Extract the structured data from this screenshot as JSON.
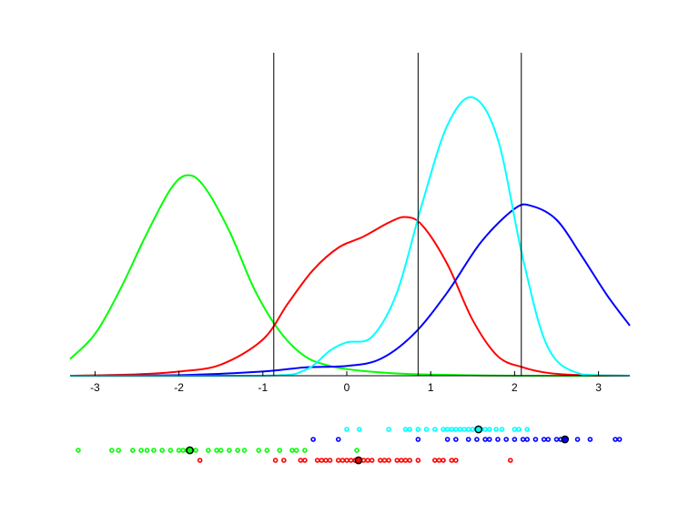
{
  "chart_data": {
    "type": "line",
    "title": "",
    "xlabel": "",
    "ylabel": "",
    "xlim": [
      -3.3,
      3.4
    ],
    "xticks": [
      -3,
      -2,
      -1,
      0,
      1,
      2,
      3
    ],
    "xtick_labels": [
      "-3",
      "-2",
      "-1",
      "0",
      "1",
      "2",
      "3"
    ],
    "grid": false,
    "legend": null,
    "decision_boundaries": [
      -0.87,
      0.85,
      2.08
    ],
    "series": [
      {
        "name": "green",
        "color": "#00ff00",
        "kind": "density",
        "peak_x": -1.9,
        "peak_height": 0.72,
        "x": [
          -3.3,
          -3.0,
          -2.7,
          -2.4,
          -2.1,
          -1.9,
          -1.7,
          -1.4,
          -1.1,
          -0.8,
          -0.5,
          -0.2,
          0.1,
          0.5,
          1.0,
          2.0,
          3.0,
          3.4
        ],
        "y": [
          0.06,
          0.15,
          0.31,
          0.5,
          0.67,
          0.72,
          0.68,
          0.52,
          0.31,
          0.16,
          0.07,
          0.035,
          0.02,
          0.01,
          0.004,
          0.0,
          0.0,
          0.0
        ]
      },
      {
        "name": "red",
        "color": "#ff0000",
        "kind": "density",
        "peak_x": 0.7,
        "peak_height": 0.57,
        "x": [
          -3.3,
          -2.5,
          -2.0,
          -1.5,
          -1.0,
          -0.7,
          -0.4,
          -0.1,
          0.2,
          0.5,
          0.7,
          0.9,
          1.2,
          1.5,
          1.8,
          2.1,
          2.4,
          2.8,
          3.4
        ],
        "y": [
          0.0,
          0.005,
          0.015,
          0.04,
          0.13,
          0.26,
          0.38,
          0.46,
          0.5,
          0.55,
          0.57,
          0.54,
          0.4,
          0.2,
          0.07,
          0.03,
          0.01,
          0.002,
          0.0
        ]
      },
      {
        "name": "cyan",
        "color": "#00ffff",
        "kind": "density",
        "peak_x": 1.5,
        "peak_height": 1.0,
        "x": [
          -3.3,
          -1.0,
          -0.5,
          -0.2,
          0.0,
          0.3,
          0.6,
          0.9,
          1.2,
          1.5,
          1.8,
          2.1,
          2.4,
          2.8,
          3.4
        ],
        "y": [
          0.0,
          0.0,
          0.02,
          0.09,
          0.12,
          0.14,
          0.3,
          0.62,
          0.9,
          1.0,
          0.85,
          0.42,
          0.1,
          0.005,
          0.0
        ]
      },
      {
        "name": "blue",
        "color": "#0000ff",
        "kind": "density",
        "peak_x": 2.2,
        "peak_height": 0.61,
        "x": [
          -3.3,
          -2.0,
          -1.0,
          -0.5,
          0.0,
          0.4,
          0.8,
          1.2,
          1.6,
          2.0,
          2.2,
          2.5,
          2.8,
          3.1,
          3.4
        ],
        "y": [
          0.0,
          0.002,
          0.015,
          0.03,
          0.035,
          0.06,
          0.15,
          0.3,
          0.48,
          0.6,
          0.61,
          0.56,
          0.43,
          0.29,
          0.18
        ]
      }
    ],
    "rug_rows": [
      {
        "name": "cyan",
        "color": "#00ffff",
        "mean": 1.57,
        "x": [
          0.0,
          0.15,
          0.5,
          0.7,
          0.75,
          0.85,
          0.95,
          1.05,
          1.15,
          1.2,
          1.25,
          1.3,
          1.35,
          1.4,
          1.45,
          1.5,
          1.6,
          1.65,
          1.7,
          1.78,
          1.85,
          2.0,
          2.05,
          2.15
        ]
      },
      {
        "name": "blue",
        "color": "#0000ff",
        "mean": 2.6,
        "x": [
          -0.4,
          -0.1,
          0.85,
          1.2,
          1.3,
          1.45,
          1.55,
          1.65,
          1.7,
          1.8,
          1.9,
          2.0,
          2.1,
          2.15,
          2.25,
          2.35,
          2.4,
          2.5,
          2.55,
          2.6,
          2.75,
          2.9,
          3.2,
          3.25
        ]
      },
      {
        "name": "green",
        "color": "#00ff00",
        "mean": -1.87,
        "x": [
          -3.2,
          -2.8,
          -2.72,
          -2.55,
          -2.45,
          -2.38,
          -2.3,
          -2.2,
          -2.1,
          -2.0,
          -1.95,
          -1.9,
          -1.8,
          -1.65,
          -1.55,
          -1.5,
          -1.4,
          -1.3,
          -1.22,
          -1.05,
          -0.95,
          -0.8,
          -0.65,
          -0.6,
          -0.5,
          0.12
        ]
      },
      {
        "name": "red",
        "color": "#ff0000",
        "mean": 0.14,
        "x": [
          -1.75,
          -0.85,
          -0.75,
          -0.55,
          -0.5,
          -0.35,
          -0.3,
          -0.25,
          -0.2,
          -0.1,
          -0.05,
          0.0,
          0.05,
          0.1,
          0.2,
          0.25,
          0.3,
          0.4,
          0.45,
          0.5,
          0.6,
          0.65,
          0.7,
          0.75,
          0.85,
          1.05,
          1.1,
          1.15,
          1.25,
          1.3,
          1.95
        ]
      }
    ]
  }
}
